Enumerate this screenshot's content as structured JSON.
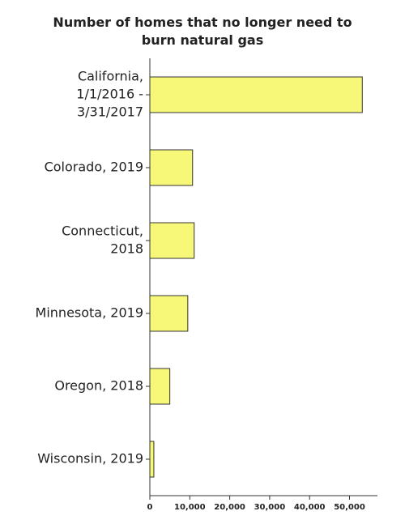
{
  "chart_data": {
    "type": "barh",
    "title": "Number of homes that no longer need to burn natural gas",
    "categories": [
      [
        "California,",
        "1/1/2016 -",
        "3/31/2017"
      ],
      [
        "Colorado, 2019"
      ],
      [
        "Connecticut,",
        "2018"
      ],
      [
        "Minnesota, 2019"
      ],
      [
        "Oregon, 2018"
      ],
      [
        "Wisconsin, 2019"
      ]
    ],
    "values": [
      53200,
      10700,
      11100,
      9500,
      5000,
      1000
    ],
    "color": "#f8f878",
    "xlim": [
      0,
      57000
    ],
    "xticks": [
      0,
      {
        "value": 10000,
        "label": "10,000"
      },
      {
        "value": 20000,
        "label": "20,000"
      },
      {
        "value": 30000,
        "label": "30,000"
      },
      {
        "value": 40000,
        "label": "40,000"
      },
      {
        "value": 50000,
        "label": "50,000"
      }
    ]
  }
}
